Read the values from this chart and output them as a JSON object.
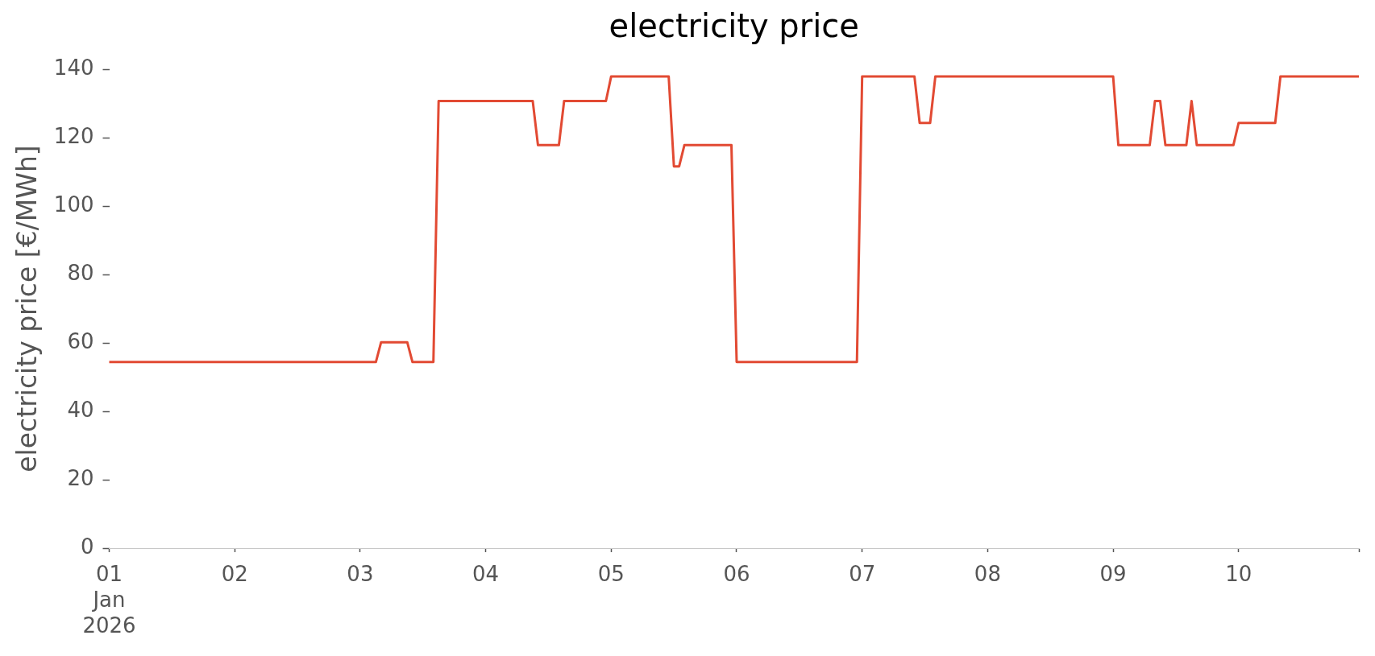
{
  "chart_data": {
    "type": "line",
    "title": "electricity price",
    "ylabel": "electricity price [€/MWh]",
    "color": "#e24a33",
    "x": [
      "2026-01-01T00:00",
      "2026-01-03T03:00",
      "2026-01-03T04:00",
      "2026-01-03T09:00",
      "2026-01-03T10:00",
      "2026-01-03T14:00",
      "2026-01-03T15:00",
      "2026-01-04T09:00",
      "2026-01-04T10:00",
      "2026-01-04T14:00",
      "2026-01-04T15:00",
      "2026-01-04T23:00",
      "2026-01-05T00:00",
      "2026-01-05T11:00",
      "2026-01-05T12:00",
      "2026-01-05T13:00",
      "2026-01-05T14:00",
      "2026-01-05T23:00",
      "2026-01-06T00:00",
      "2026-01-06T23:00",
      "2026-01-07T00:00",
      "2026-01-07T10:00",
      "2026-01-07T11:00",
      "2026-01-07T13:00",
      "2026-01-07T14:00",
      "2026-01-09T00:00",
      "2026-01-09T01:00",
      "2026-01-09T07:00",
      "2026-01-09T08:00",
      "2026-01-09T09:00",
      "2026-01-09T10:00",
      "2026-01-09T14:00",
      "2026-01-09T15:00",
      "2026-01-09T16:00",
      "2026-01-09T23:00",
      "2026-01-10T00:00",
      "2026-01-10T07:00",
      "2026-01-10T08:00",
      "2026-01-10T23:00"
    ],
    "values": [
      54.4,
      54.4,
      60.2,
      60.2,
      54.4,
      54.4,
      130.7,
      130.7,
      117.8,
      117.8,
      130.7,
      130.7,
      137.9,
      137.9,
      111.6,
      111.6,
      117.8,
      117.8,
      54.4,
      54.4,
      137.9,
      137.9,
      124.3,
      124.3,
      137.9,
      137.9,
      117.8,
      117.8,
      130.7,
      130.7,
      117.8,
      117.8,
      130.7,
      117.8,
      117.8,
      124.3,
      124.3,
      137.9,
      137.9
    ],
    "xlim": [
      "2026-01-01T00:00",
      "2026-01-10T23:00"
    ],
    "xticks": [
      {
        "value": "2026-01-01",
        "label": "01\nJan\n2026"
      },
      {
        "value": "2026-01-02",
        "label": "02"
      },
      {
        "value": "2026-01-03",
        "label": "03"
      },
      {
        "value": "2026-01-04",
        "label": "04"
      },
      {
        "value": "2026-01-05",
        "label": "05"
      },
      {
        "value": "2026-01-06",
        "label": "06"
      },
      {
        "value": "2026-01-07",
        "label": "07"
      },
      {
        "value": "2026-01-08",
        "label": "08"
      },
      {
        "value": "2026-01-09",
        "label": "09"
      },
      {
        "value": "2026-01-10",
        "label": "10"
      },
      {
        "value": "2026-01-10T23:00",
        "label": null
      }
    ],
    "ylim": [
      0,
      140
    ],
    "yticks": [
      0,
      20,
      40,
      60,
      80,
      100,
      120,
      140
    ]
  }
}
